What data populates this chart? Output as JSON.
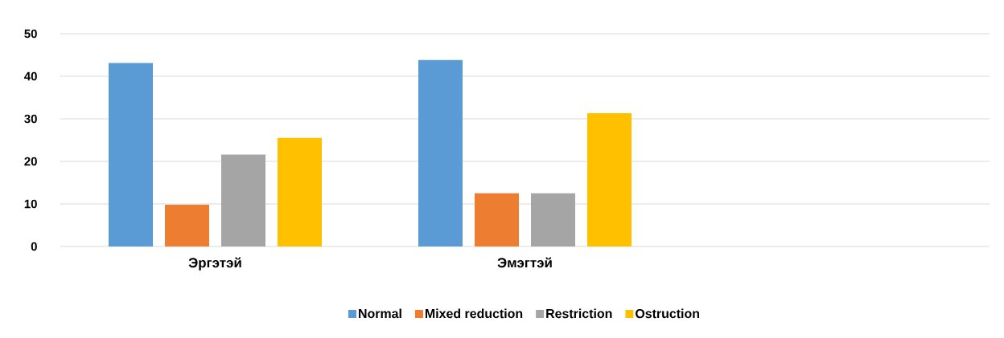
{
  "chart_data": {
    "type": "bar",
    "categories": [
      "Эргэтэй",
      "Эмэгтэй",
      null
    ],
    "series": [
      {
        "name": "Normal",
        "color": "#5b9bd5",
        "values": [
          43.1,
          43.8,
          null
        ]
      },
      {
        "name": "Mixed reduction",
        "color": "#ed7d31",
        "values": [
          9.8,
          12.5,
          null
        ]
      },
      {
        "name": "Restriction",
        "color": "#a5a5a5",
        "values": [
          21.6,
          12.5,
          null
        ]
      },
      {
        "name": "Ostruction",
        "color": "#ffc000",
        "values": [
          25.5,
          31.3,
          null
        ]
      }
    ],
    "ylim": [
      0,
      50
    ],
    "yticks": [
      0,
      10,
      20,
      30,
      40,
      50
    ],
    "grid": "y",
    "legend": "bottom"
  }
}
